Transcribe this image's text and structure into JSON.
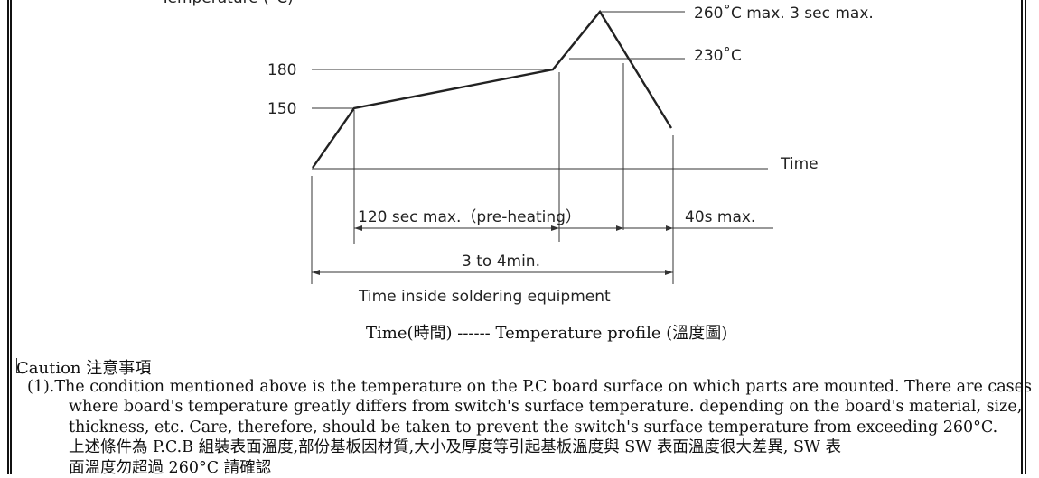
{
  "chart_data": {
    "type": "line",
    "title": "",
    "ylabel": "Temperature (°C)",
    "xlabel": "Time",
    "y_ticks": [
      "180",
      "150"
    ],
    "annotations": {
      "peak": "260˚C max. 3 sec max.",
      "reflow": "230˚C",
      "preheat_span": "120 sec max.（pre-heating）",
      "cool_span": "40s max.",
      "total_span": "3 to 4min.",
      "equipment": "Time inside soldering equipment"
    }
  },
  "caption": "Time(時間) ------ Temperature profile (溫度圖)",
  "caution": {
    "title": "Caution  注意事項",
    "lines": [
      "(1).The condition mentioned above is the temperature on the P.C board surface on which parts are mounted. There are cases",
      "where board's temperature greatly differs from switch's surface temperature. depending on the board's material, size,",
      "thickness, etc. Care, therefore, should be taken to prevent the switch's surface temperature from exceeding 260°C.",
      "上述條件為 P.C.B 組裝表面溫度,部份基板因材質,大小及厚度等引起基板溫度與 SW 表面溫度很大差異, SW 表",
      "面溫度勿超過 260°C 請確認"
    ]
  }
}
